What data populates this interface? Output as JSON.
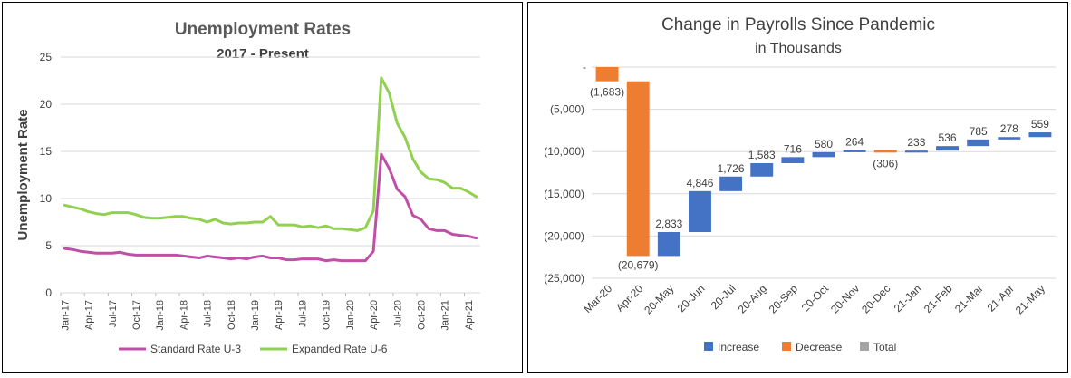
{
  "chart_data": [
    {
      "type": "line",
      "title": "Unemployment Rates",
      "subtitle": "2017 - Present",
      "ylabel": "Unemployment Rate",
      "xlabel": "",
      "ylim": [
        0,
        25
      ],
      "y_ticks": [
        "0",
        "5",
        "10",
        "15",
        "20",
        "25"
      ],
      "x_tick_labels": [
        "Jan-17",
        "Apr-17",
        "Jul-17",
        "Oct-17",
        "Jan-18",
        "Apr-18",
        "Jul-18",
        "Oct-18",
        "Jan-19",
        "Apr-19",
        "Jul-19",
        "Oct-19",
        "Jan-20",
        "Apr-20",
        "Jul-20",
        "Oct-20",
        "Jan-21",
        "Apr-21"
      ],
      "x": [
        "Jan-17",
        "Feb-17",
        "Mar-17",
        "Apr-17",
        "May-17",
        "Jun-17",
        "Jul-17",
        "Aug-17",
        "Sep-17",
        "Oct-17",
        "Nov-17",
        "Dec-17",
        "Jan-18",
        "Feb-18",
        "Mar-18",
        "Apr-18",
        "May-18",
        "Jun-18",
        "Jul-18",
        "Aug-18",
        "Sep-18",
        "Oct-18",
        "Nov-18",
        "Dec-18",
        "Jan-19",
        "Feb-19",
        "Mar-19",
        "Apr-19",
        "May-19",
        "Jun-19",
        "Jul-19",
        "Aug-19",
        "Sep-19",
        "Oct-19",
        "Nov-19",
        "Dec-19",
        "Jan-20",
        "Feb-20",
        "Mar-20",
        "Apr-20",
        "May-20",
        "Jun-20",
        "Jul-20",
        "Aug-20",
        "Sep-20",
        "Oct-20",
        "Nov-20",
        "Dec-20",
        "Jan-21",
        "Feb-21",
        "Mar-21",
        "Apr-21",
        "May-21"
      ],
      "series": [
        {
          "name": "Standard Rate U-3",
          "color": "#c04fa8",
          "values": [
            4.7,
            4.6,
            4.4,
            4.3,
            4.2,
            4.2,
            4.2,
            4.3,
            4.1,
            4.0,
            4.0,
            4.0,
            4.0,
            4.0,
            4.0,
            3.9,
            3.8,
            3.7,
            3.9,
            3.8,
            3.7,
            3.6,
            3.7,
            3.6,
            3.8,
            3.9,
            3.7,
            3.7,
            3.5,
            3.5,
            3.6,
            3.6,
            3.6,
            3.4,
            3.5,
            3.4,
            3.4,
            3.4,
            3.4,
            4.4,
            14.7,
            13.2,
            11.0,
            10.2,
            8.2,
            7.8,
            6.8,
            6.6,
            6.6,
            6.2,
            6.1,
            6.0,
            5.8
          ]
        },
        {
          "name": "Expanded Rate U-6",
          "color": "#92d050",
          "values": [
            9.3,
            9.1,
            8.9,
            8.6,
            8.4,
            8.3,
            8.5,
            8.5,
            8.5,
            8.3,
            8.0,
            7.9,
            7.9,
            8.0,
            8.1,
            8.1,
            7.9,
            7.8,
            7.5,
            7.8,
            7.4,
            7.3,
            7.4,
            7.4,
            7.5,
            7.5,
            8.1,
            7.2,
            7.2,
            7.2,
            7.0,
            7.1,
            6.9,
            7.1,
            6.8,
            6.8,
            6.7,
            6.6,
            6.9,
            8.7,
            22.8,
            21.2,
            18.0,
            16.5,
            14.2,
            12.8,
            12.1,
            12.0,
            11.7,
            11.1,
            11.1,
            10.7,
            10.2
          ]
        }
      ],
      "legend": [
        "Standard Rate U-3",
        "Expanded Rate U-6"
      ],
      "legend_position": "bottom",
      "grid": true
    },
    {
      "type": "bar",
      "subtype": "waterfall",
      "title": "Change in Payrolls Since Pandemic",
      "subtitle": "in Thousands",
      "xlabel": "",
      "ylabel": "",
      "ylim": [
        -25000,
        0
      ],
      "y_ticks": [
        "-",
        "(5,000)",
        "(10,000)",
        "(15,000)",
        "(20,000)",
        "(25,000)"
      ],
      "categories": [
        "Mar-20",
        "Apr-20",
        "20-May",
        "20-Jun",
        "20-Jul",
        "20-Aug",
        "20-Sep",
        "20-Oct",
        "20-Nov",
        "20-Dec",
        "21-Jan",
        "21-Feb",
        "21-Mar",
        "21-Apr",
        "21-May"
      ],
      "values": [
        -1683,
        -20679,
        2833,
        4846,
        1726,
        1583,
        716,
        580,
        264,
        -306,
        233,
        536,
        785,
        278,
        559
      ],
      "data_labels": [
        "(1,683)",
        "(20,679)",
        "2,833",
        "4,846",
        "1,726",
        "1,583",
        "716",
        "580",
        "264",
        "(306)",
        "233",
        "536",
        "785",
        "278",
        "559"
      ],
      "legend": [
        "Increase",
        "Decrease",
        "Total"
      ],
      "legend_position": "bottom",
      "colors": {
        "increase": "#4472c4",
        "decrease": "#ed7d31",
        "total": "#a5a5a5"
      },
      "grid": true
    }
  ]
}
